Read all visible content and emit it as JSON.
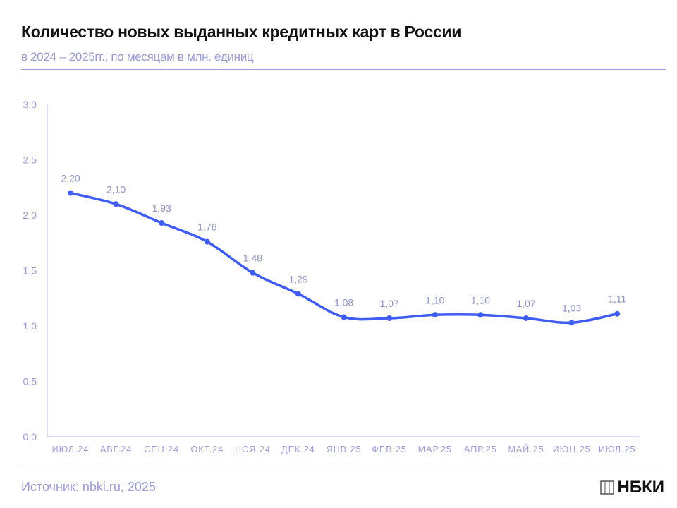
{
  "header": {
    "title": "Количество новых выданных кредитных карт в России",
    "subtitle": "в 2024 – 2025гг., по месяцам в млн. единиц"
  },
  "footer": {
    "source": "Источник: nbki.ru, 2025",
    "logo": "НБКИ"
  },
  "colors": {
    "line": "#3f5cf5",
    "labels": "#9a9dd0"
  },
  "chart_data": {
    "type": "line",
    "categories": [
      "ИЮЛ.24",
      "АВГ.24",
      "СЕН.24",
      "ОКТ.24",
      "НОЯ.24",
      "ДЕК.24",
      "ЯНВ.25",
      "ФЕВ.25",
      "МАР.25",
      "АПР.25",
      "МАЙ.25",
      "ИЮН.25",
      "ИЮЛ.25"
    ],
    "values": [
      2.2,
      2.1,
      1.93,
      1.76,
      1.48,
      1.29,
      1.08,
      1.07,
      1.1,
      1.1,
      1.07,
      1.03,
      1.11
    ],
    "data_labels": [
      "2,20",
      "2,10",
      "1,93",
      "1,76",
      "1,48",
      "1,29",
      "1,08",
      "1,07",
      "1,10",
      "1,10",
      "1,07",
      "1,03",
      "1,11"
    ],
    "yticks": [
      "0,0",
      "0,5",
      "1,0",
      "1,5",
      "2,0",
      "2,5",
      "3,0"
    ],
    "ylim": [
      0,
      3
    ],
    "grid": false,
    "smooth": true
  }
}
